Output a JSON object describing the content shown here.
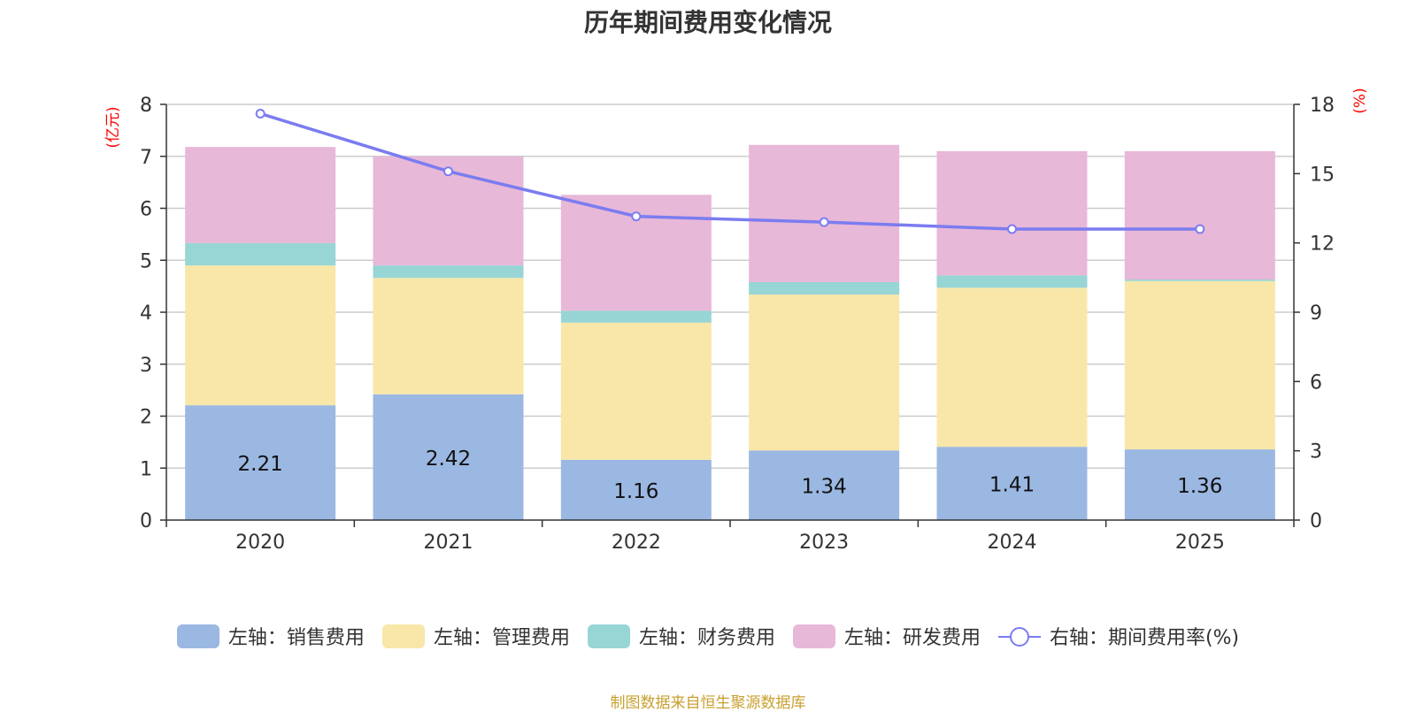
{
  "title": "历年期间费用变化情况",
  "source": "制图数据来自恒生聚源数据库",
  "chart_data": {
    "type": "bar",
    "stacked": true,
    "title": "历年期间费用变化情况",
    "categories": [
      "2020",
      "2021",
      "2022",
      "2023",
      "2024",
      "2025"
    ],
    "left_axis": {
      "unit": "(亿元)",
      "ylim": [
        0,
        8
      ],
      "ticks": [
        "0",
        "1",
        "2",
        "3",
        "4",
        "5",
        "6",
        "7",
        "8"
      ]
    },
    "right_axis": {
      "unit": "(%)",
      "ylim": [
        0,
        18
      ],
      "ticks": [
        "0",
        "3",
        "6",
        "9",
        "12",
        "15",
        "18"
      ]
    },
    "series": [
      {
        "name": "左轴：销售费用",
        "axis": "left",
        "color": "#9bb8e2",
        "values": [
          2.21,
          2.42,
          1.16,
          1.34,
          1.41,
          1.36
        ],
        "labels": [
          "2.21",
          "2.42",
          "1.16",
          "1.34",
          "1.41",
          "1.36"
        ]
      },
      {
        "name": "左轴：管理费用",
        "axis": "left",
        "color": "#f8e7a8",
        "values": [
          2.69,
          2.24,
          2.64,
          3.0,
          3.06,
          3.24
        ]
      },
      {
        "name": "左轴：财务费用",
        "axis": "left",
        "color": "#98d5d5",
        "values": [
          0.43,
          0.24,
          0.23,
          0.24,
          0.24,
          0.03
        ]
      },
      {
        "name": "左轴：研发费用",
        "axis": "left",
        "color": "#e8b8d8",
        "values": [
          1.85,
          2.1,
          2.23,
          2.64,
          2.39,
          2.47
        ]
      },
      {
        "name": "右轴：期间费用率(%)",
        "axis": "right",
        "type": "line",
        "color": "#7b7cf0",
        "values": [
          17.6,
          15.1,
          13.15,
          12.9,
          12.6,
          12.6
        ]
      }
    ]
  }
}
